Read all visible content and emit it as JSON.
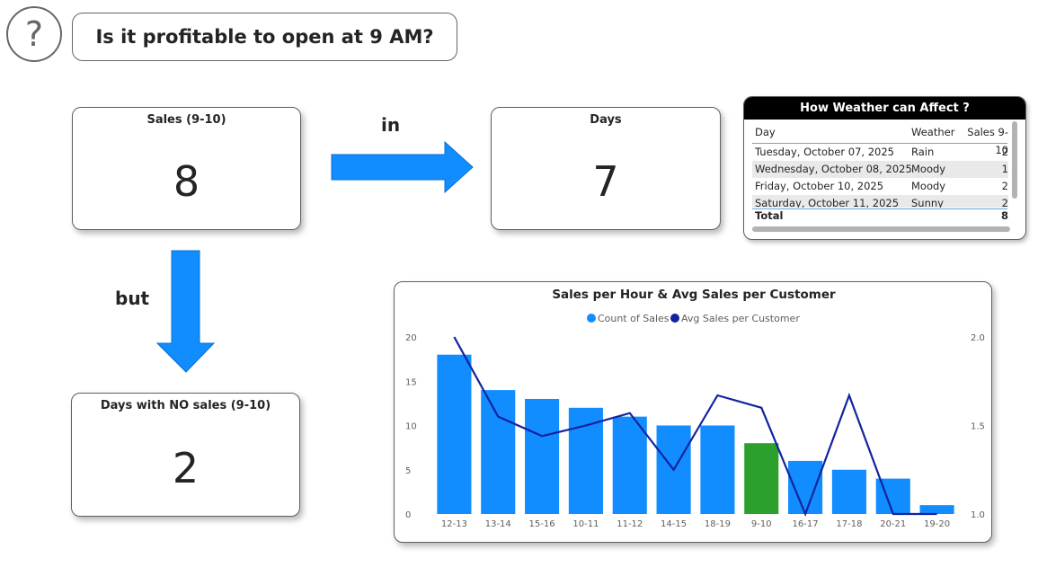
{
  "header": {
    "question": "Is it profitable to open at 9 AM?",
    "help_glyph": "?"
  },
  "kpis": {
    "sales_9_10": {
      "title": "Sales (9-10)",
      "value": "8"
    },
    "days": {
      "title": "Days",
      "value": "7"
    },
    "no_sales_days": {
      "title": "Days with NO sales (9-10)",
      "value": "2"
    }
  },
  "connectors": {
    "in": "in",
    "but": "but"
  },
  "weather_table": {
    "title": "How Weather can Affect ?",
    "columns": [
      "Day",
      "Weather",
      "Sales 9-10"
    ],
    "rows": [
      {
        "day": "Tuesday, October 07, 2025",
        "weather": "Rain",
        "sales": "2"
      },
      {
        "day": "Wednesday, October 08, 2025",
        "weather": "Moody",
        "sales": "1"
      },
      {
        "day": "Friday, October 10, 2025",
        "weather": "Moody",
        "sales": "2"
      },
      {
        "day": "Saturday, October 11, 2025",
        "weather": "Sunny",
        "sales": "2"
      }
    ],
    "total_label": "Total",
    "total_value": "8"
  },
  "colors": {
    "arrow": "#118DFF",
    "bar": "#118DFF",
    "bar_highlight": "#2CA02C",
    "line": "#12239E"
  },
  "chart_data": {
    "type": "bar",
    "title": "Sales per Hour & Avg Sales per Customer",
    "categories": [
      "12-13",
      "13-14",
      "15-16",
      "10-11",
      "11-12",
      "14-15",
      "18-19",
      "9-10",
      "16-17",
      "17-18",
      "20-21",
      "19-20"
    ],
    "series": [
      {
        "name": "Count of Sales",
        "type": "bar",
        "axis": "left",
        "values": [
          18,
          14,
          13,
          12,
          11,
          10,
          10,
          8,
          6,
          5,
          4,
          1
        ]
      },
      {
        "name": "Avg Sales per Customer",
        "type": "line",
        "axis": "right",
        "values": [
          2.0,
          1.55,
          1.44,
          1.5,
          1.57,
          1.25,
          1.67,
          1.6,
          1.0,
          1.67,
          1.0,
          1.0
        ]
      }
    ],
    "highlight_category": "9-10",
    "y_left": {
      "ticks": [
        "0",
        "5",
        "10",
        "15",
        "20"
      ],
      "ylim": [
        0,
        20
      ]
    },
    "y_right": {
      "ticks": [
        "1.0",
        "1.5",
        "2.0"
      ],
      "ylim": [
        1.0,
        2.0
      ]
    },
    "legend_position": "top-center",
    "grid": false
  }
}
